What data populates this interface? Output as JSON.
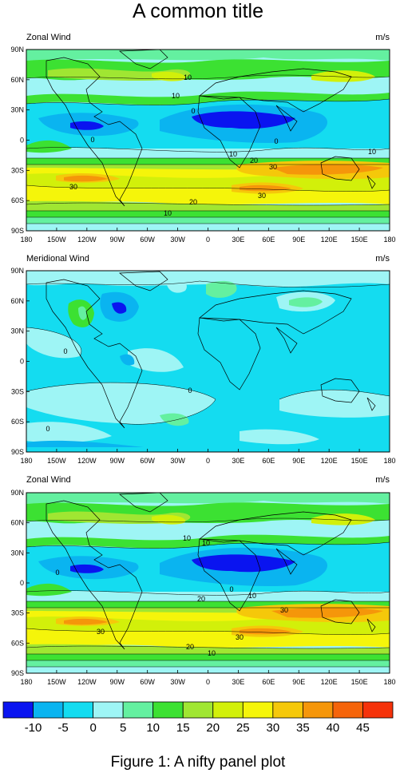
{
  "title": "A common title",
  "footer": "Figure 1: A nifty panel plot",
  "panels": [
    {
      "left_label": "Zonal Wind",
      "right_label": "m/s"
    },
    {
      "left_label": "Meridional Wind",
      "right_label": "m/s"
    },
    {
      "left_label": "Zonal Wind",
      "right_label": "m/s"
    }
  ],
  "lat_labels": [
    "90N",
    "60N",
    "30N",
    "0",
    "30S",
    "60S",
    "90S"
  ],
  "lon_labels": [
    "180",
    "150W",
    "120W",
    "90W",
    "60W",
    "30W",
    "0",
    "30E",
    "60E",
    "90E",
    "120E",
    "150E",
    "180"
  ],
  "contour_labels": {
    "panel1": [
      "10",
      "10",
      "0",
      "0",
      "0",
      "10",
      "20",
      "30",
      "10",
      "30",
      "20",
      "30",
      "10"
    ],
    "panel2": [
      "0",
      "0",
      "0"
    ],
    "panel3": [
      "10",
      "0",
      "10",
      "0",
      "10",
      "20",
      "30",
      "30",
      "20",
      "30",
      "10"
    ]
  },
  "colorbar": {
    "labels": [
      "-10",
      "-5",
      "0",
      "5",
      "10",
      "15",
      "20",
      "25",
      "30",
      "35",
      "40",
      "45"
    ],
    "colors": [
      "#0a14f0",
      "#0ab4f0",
      "#14dcf0",
      "#9ef5f5",
      "#64f0a0",
      "#3ce132",
      "#a0e632",
      "#d2f00a",
      "#f5f50a",
      "#f5c80a",
      "#f5960a",
      "#f5640a",
      "#f5320a"
    ]
  }
}
